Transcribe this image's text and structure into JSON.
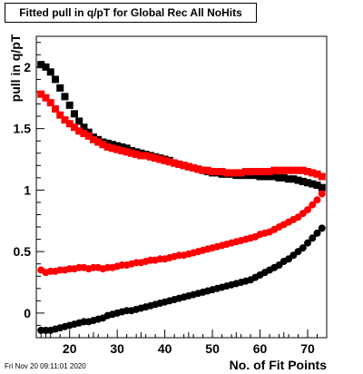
{
  "chart_data": {
    "type": "scatter",
    "title": "Fitted pull in q/pT for Global Rec All NoHits",
    "xlabel": "No. of Fit Points",
    "ylabel": "pull in q/pT",
    "xlim": [
      13,
      74
    ],
    "ylim": [
      -0.2,
      2.25
    ],
    "xticks": [
      20,
      30,
      40,
      50,
      60,
      70
    ],
    "yticks": [
      0,
      0.5,
      1,
      1.5,
      2
    ],
    "grid": false,
    "colors": {
      "black": "#000000",
      "red": "#ff0000"
    },
    "series": [
      {
        "id": "black_upper",
        "marker": "square",
        "color": "#000000",
        "x": [
          14,
          15,
          16,
          17,
          18,
          19,
          20,
          21,
          22,
          23,
          24,
          25,
          26,
          27,
          28,
          29,
          30,
          31,
          32,
          33,
          34,
          35,
          36,
          37,
          38,
          39,
          40,
          41,
          42,
          43,
          44,
          45,
          46,
          47,
          48,
          49,
          50,
          51,
          52,
          53,
          54,
          55,
          56,
          57,
          58,
          59,
          60,
          61,
          62,
          63,
          64,
          65,
          66,
          67,
          68,
          69,
          70,
          71,
          72,
          73
        ],
        "y": [
          2.02,
          2.0,
          1.96,
          1.9,
          1.83,
          1.76,
          1.69,
          1.62,
          1.56,
          1.51,
          1.47,
          1.43,
          1.41,
          1.39,
          1.38,
          1.37,
          1.36,
          1.35,
          1.34,
          1.32,
          1.31,
          1.3,
          1.29,
          1.28,
          1.27,
          1.26,
          1.25,
          1.24,
          1.22,
          1.21,
          1.2,
          1.19,
          1.18,
          1.17,
          1.16,
          1.15,
          1.14,
          1.14,
          1.13,
          1.13,
          1.13,
          1.12,
          1.12,
          1.12,
          1.12,
          1.12,
          1.11,
          1.11,
          1.11,
          1.11,
          1.1,
          1.1,
          1.09,
          1.09,
          1.08,
          1.07,
          1.06,
          1.05,
          1.04,
          1.02
        ]
      },
      {
        "id": "red_upper",
        "marker": "square",
        "color": "#ff0000",
        "x": [
          14,
          15,
          16,
          17,
          18,
          19,
          20,
          21,
          22,
          23,
          24,
          25,
          26,
          27,
          28,
          29,
          30,
          31,
          32,
          33,
          34,
          35,
          36,
          37,
          38,
          39,
          40,
          41,
          42,
          43,
          44,
          45,
          46,
          47,
          48,
          49,
          50,
          51,
          52,
          53,
          54,
          55,
          56,
          57,
          58,
          59,
          60,
          61,
          62,
          63,
          64,
          65,
          66,
          67,
          68,
          69,
          70,
          71,
          72,
          73
        ],
        "y": [
          1.78,
          1.75,
          1.71,
          1.66,
          1.61,
          1.57,
          1.54,
          1.51,
          1.48,
          1.46,
          1.44,
          1.41,
          1.39,
          1.37,
          1.35,
          1.34,
          1.33,
          1.32,
          1.31,
          1.3,
          1.29,
          1.28,
          1.28,
          1.27,
          1.26,
          1.25,
          1.24,
          1.23,
          1.22,
          1.21,
          1.2,
          1.19,
          1.18,
          1.17,
          1.16,
          1.16,
          1.15,
          1.15,
          1.15,
          1.14,
          1.14,
          1.14,
          1.14,
          1.15,
          1.15,
          1.15,
          1.15,
          1.15,
          1.15,
          1.16,
          1.16,
          1.16,
          1.16,
          1.16,
          1.16,
          1.16,
          1.15,
          1.14,
          1.13,
          1.11
        ]
      },
      {
        "id": "red_lower",
        "marker": "circle",
        "color": "#ff0000",
        "x": [
          14,
          15,
          16,
          17,
          18,
          19,
          20,
          21,
          22,
          23,
          24,
          25,
          26,
          27,
          28,
          29,
          30,
          31,
          32,
          33,
          34,
          35,
          36,
          37,
          38,
          39,
          40,
          41,
          42,
          43,
          44,
          45,
          46,
          47,
          48,
          49,
          50,
          51,
          52,
          53,
          54,
          55,
          56,
          57,
          58,
          59,
          60,
          61,
          62,
          63,
          64,
          65,
          66,
          67,
          68,
          69,
          70,
          71,
          72,
          73
        ],
        "y": [
          0.35,
          0.33,
          0.34,
          0.34,
          0.35,
          0.35,
          0.36,
          0.36,
          0.37,
          0.37,
          0.36,
          0.37,
          0.37,
          0.36,
          0.37,
          0.37,
          0.38,
          0.39,
          0.39,
          0.4,
          0.41,
          0.41,
          0.42,
          0.43,
          0.43,
          0.44,
          0.44,
          0.45,
          0.46,
          0.47,
          0.47,
          0.48,
          0.49,
          0.5,
          0.51,
          0.52,
          0.53,
          0.54,
          0.55,
          0.56,
          0.57,
          0.58,
          0.59,
          0.6,
          0.61,
          0.62,
          0.64,
          0.65,
          0.66,
          0.68,
          0.7,
          0.72,
          0.74,
          0.76,
          0.78,
          0.81,
          0.84,
          0.88,
          0.92,
          0.97
        ]
      },
      {
        "id": "black_lower",
        "marker": "circle",
        "color": "#000000",
        "x": [
          14,
          15,
          16,
          17,
          18,
          19,
          20,
          21,
          22,
          23,
          24,
          25,
          26,
          27,
          28,
          29,
          30,
          31,
          32,
          33,
          34,
          35,
          36,
          37,
          38,
          39,
          40,
          41,
          42,
          43,
          44,
          45,
          46,
          47,
          48,
          49,
          50,
          51,
          52,
          53,
          54,
          55,
          56,
          57,
          58,
          59,
          60,
          61,
          62,
          63,
          64,
          65,
          66,
          67,
          68,
          69,
          70,
          71,
          72,
          73
        ],
        "y": [
          -0.14,
          -0.14,
          -0.14,
          -0.13,
          -0.12,
          -0.11,
          -0.1,
          -0.09,
          -0.08,
          -0.07,
          -0.07,
          -0.06,
          -0.05,
          -0.04,
          -0.02,
          -0.01,
          0.0,
          0.01,
          0.02,
          0.02,
          0.03,
          0.04,
          0.05,
          0.06,
          0.07,
          0.08,
          0.09,
          0.1,
          0.11,
          0.12,
          0.13,
          0.14,
          0.15,
          0.16,
          0.17,
          0.18,
          0.19,
          0.2,
          0.21,
          0.22,
          0.23,
          0.24,
          0.25,
          0.26,
          0.27,
          0.29,
          0.31,
          0.33,
          0.35,
          0.37,
          0.39,
          0.42,
          0.44,
          0.47,
          0.5,
          0.53,
          0.57,
          0.61,
          0.65,
          0.69
        ]
      }
    ]
  },
  "footer": {
    "timestamp": "Fri Nov 20 09:11:01 2020"
  }
}
